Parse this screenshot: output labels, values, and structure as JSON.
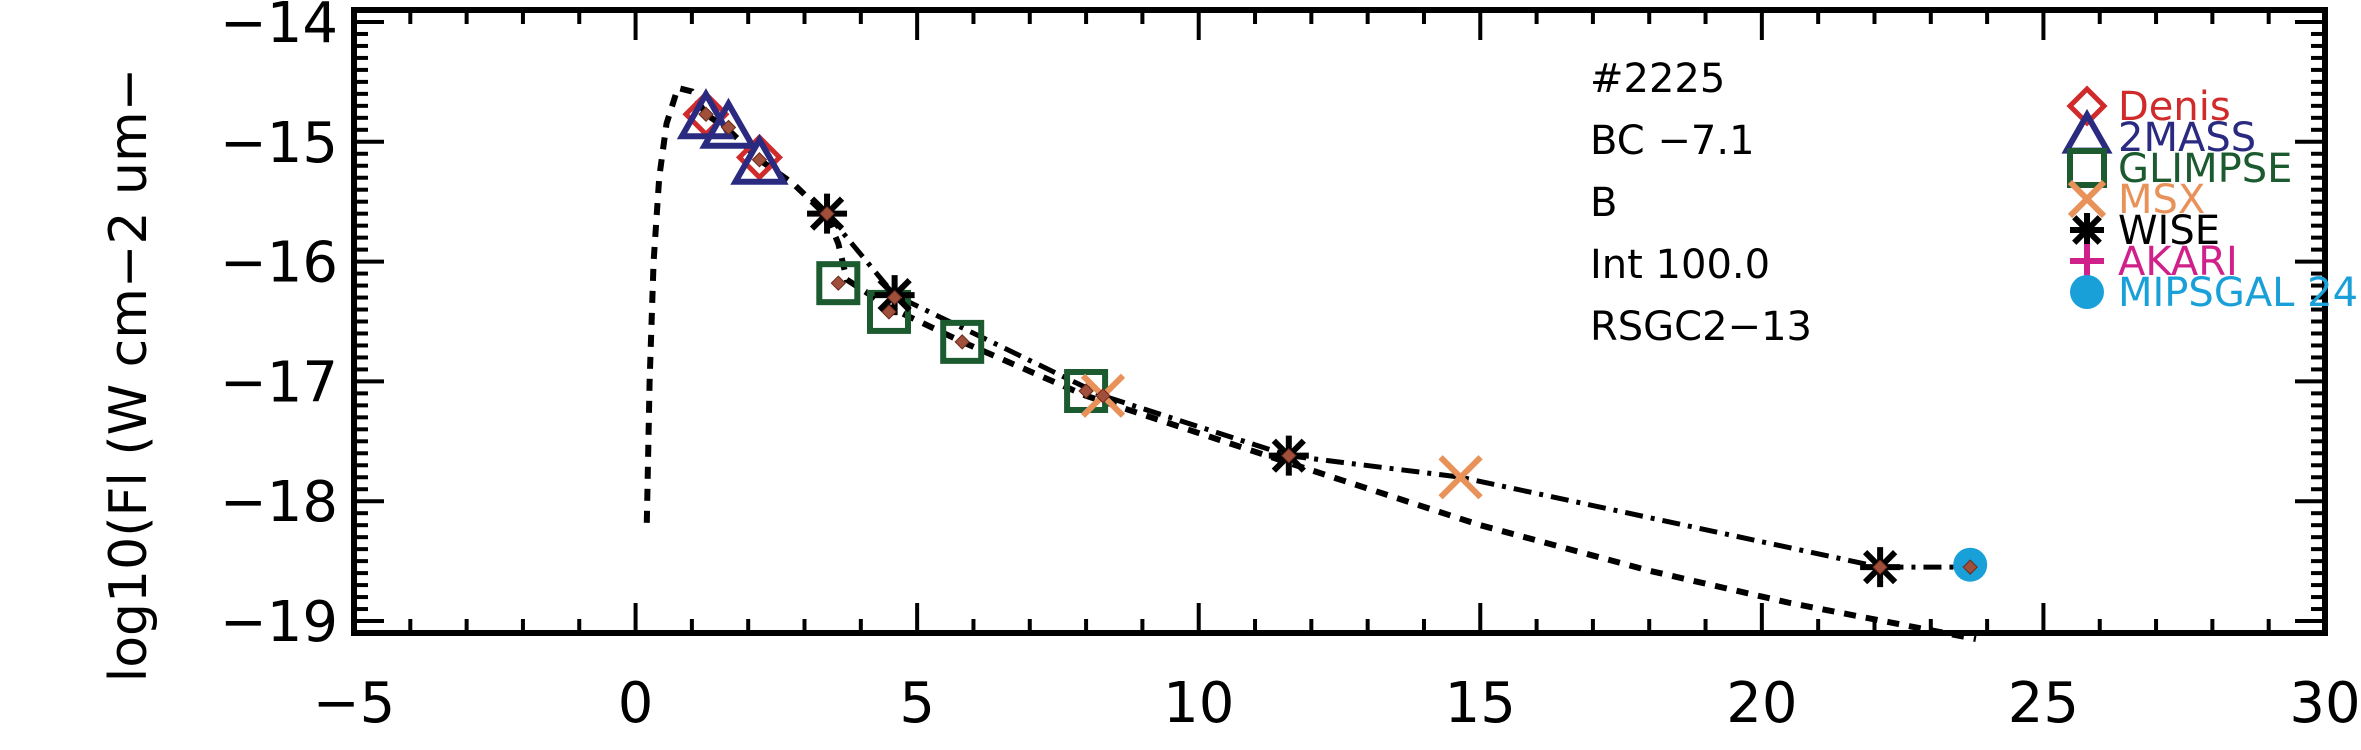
{
  "chart_data": {
    "type": "scatter",
    "title": "",
    "xlabel": "",
    "ylabel": "log10(Fl (W cm−2 um−",
    "xlim": [
      -5,
      30
    ],
    "ylim": [
      -19.1,
      -13.9
    ],
    "x_ticks": [
      -5,
      0,
      5,
      10,
      15,
      20,
      25,
      30
    ],
    "x_tick_labels": [
      "−5",
      "0",
      "5",
      "10",
      "15",
      "20",
      "25",
      "30"
    ],
    "y_ticks": [
      -14,
      -15,
      -16,
      -17,
      -18,
      -19
    ],
    "y_tick_labels": [
      "−14",
      "−15",
      "−16",
      "−17",
      "−18",
      "−19"
    ],
    "grid": false,
    "legend_position": "top-right",
    "annotations": [
      "#2225",
      "BC −7.1",
      "B",
      "Int 100.0",
      "RSGC2−13"
    ],
    "series": [
      {
        "name": "Denis",
        "marker": "diamond",
        "color": "#d02a2a",
        "x": [
          1.25,
          2.2
        ],
        "y": [
          -14.77,
          -15.13
        ]
      },
      {
        "name": "2MASS",
        "marker": "triangle",
        "color": "#2a2a80",
        "x": [
          1.25,
          1.65,
          2.2
        ],
        "y": [
          -14.82,
          -14.9,
          -15.2
        ]
      },
      {
        "name": "GLIMPSE",
        "marker": "square",
        "color": "#1c5a30",
        "x": [
          3.6,
          4.5,
          5.8,
          8.0
        ],
        "y": [
          -16.18,
          -16.42,
          -16.67,
          -17.08
        ]
      },
      {
        "name": "MSX",
        "marker": "x",
        "color": "#e8925a",
        "x": [
          8.3,
          14.65
        ],
        "y": [
          -17.12,
          -17.8
        ]
      },
      {
        "name": "WISE",
        "marker": "star",
        "color": "#000000",
        "x": [
          3.4,
          4.6,
          11.6,
          22.1
        ],
        "y": [
          -15.6,
          -16.28,
          -17.62,
          -18.55
        ]
      },
      {
        "name": "AKARI",
        "marker": "plus",
        "color": "#d0208a",
        "x": [],
        "y": []
      },
      {
        "name": "MIPSGAL 24",
        "marker": "circle",
        "color": "#1aa0d8",
        "x": [
          23.7
        ],
        "y": [
          -18.53
        ]
      }
    ],
    "model_points": {
      "color": "#a0503a",
      "x": [
        1.25,
        1.65,
        2.2,
        3.4,
        3.6,
        4.5,
        4.6,
        5.8,
        8.0,
        8.3,
        11.6,
        22.1,
        23.7
      ],
      "y": [
        -14.77,
        -14.88,
        -15.15,
        -15.6,
        -16.18,
        -16.42,
        -16.3,
        -16.67,
        -17.08,
        -17.12,
        -17.62,
        -18.55,
        -18.55
      ]
    },
    "model_curve_dashed": {
      "x": [
        0.2,
        0.25,
        0.32,
        0.42,
        0.55,
        0.75,
        1.0,
        1.25,
        1.65,
        2.2,
        2.8,
        3.4,
        3.6,
        3.75,
        4.5,
        5.8,
        8.0,
        11.6,
        15.0,
        18.0,
        20.5,
        23.8
      ],
      "y": [
        -18.18,
        -17.0,
        -16.0,
        -15.3,
        -14.85,
        -14.55,
        -14.58,
        -14.77,
        -14.9,
        -15.15,
        -15.35,
        -15.62,
        -15.85,
        -16.15,
        -16.38,
        -16.67,
        -17.12,
        -17.68,
        -18.2,
        -18.58,
        -18.85,
        -19.15
      ]
    },
    "model_curve_dashdot": {
      "x": [
        3.4,
        4.6,
        8.3,
        11.6,
        14.65,
        22.1,
        23.7
      ],
      "y": [
        -15.6,
        -16.28,
        -17.12,
        -17.62,
        -17.8,
        -18.55,
        -18.55
      ]
    }
  }
}
